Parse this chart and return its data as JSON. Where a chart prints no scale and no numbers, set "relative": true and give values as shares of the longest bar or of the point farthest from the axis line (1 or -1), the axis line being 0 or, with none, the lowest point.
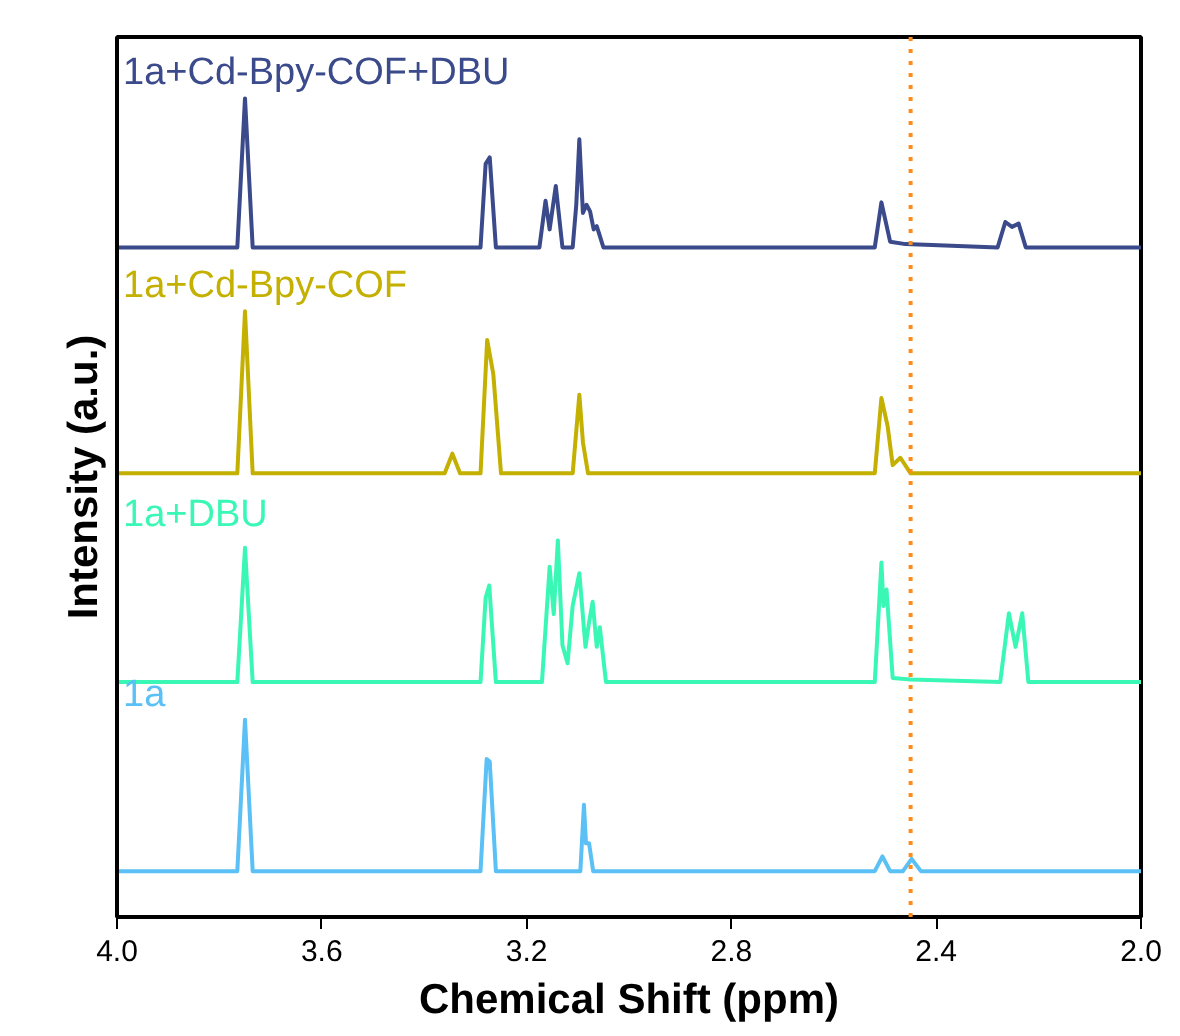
{
  "chart_data": {
    "type": "line",
    "relative": true,
    "xlabel": "Chemical Shift (ppm)",
    "ylabel": "Intensity (a.u.)",
    "xlim": [
      4.0,
      2.0
    ],
    "xticks": [
      {
        "value": 4.0,
        "label": "4.0"
      },
      {
        "value": 3.6,
        "label": "3.6"
      },
      {
        "value": 3.2,
        "label": "3.2"
      },
      {
        "value": 2.8,
        "label": "2.8"
      },
      {
        "value": 2.4,
        "label": "2.4"
      },
      {
        "value": 2.0,
        "label": "2.0"
      }
    ],
    "grid": false,
    "legend": false,
    "marker": "none",
    "line_style": "solid",
    "ref_lines": [
      {
        "axis": "x",
        "value": 2.45,
        "color": "#ff8c1a",
        "line_style": "dotted"
      }
    ],
    "series": [
      {
        "name": "1a",
        "color": "#5ac0f5",
        "x": [
          4.0,
          3.765,
          3.75,
          3.735,
          3.29,
          3.278,
          3.272,
          3.26,
          3.095,
          3.088,
          3.084,
          3.078,
          3.07,
          2.52,
          2.505,
          2.49,
          2.465,
          2.448,
          2.43,
          2.0
        ],
        "values": [
          0.056,
          0.056,
          0.241,
          0.056,
          0.056,
          0.193,
          0.19,
          0.056,
          0.056,
          0.137,
          0.09,
          0.09,
          0.056,
          0.056,
          0.074,
          0.056,
          0.056,
          0.071,
          0.056,
          0.056
        ]
      },
      {
        "name": "1a+DBU",
        "color": "#3af7b6",
        "x": [
          4.0,
          3.765,
          3.75,
          3.735,
          3.29,
          3.28,
          3.273,
          3.26,
          3.17,
          3.155,
          3.147,
          3.139,
          3.13,
          3.12,
          3.11,
          3.097,
          3.085,
          3.078,
          3.071,
          3.063,
          3.057,
          3.045,
          2.52,
          2.507,
          2.503,
          2.497,
          2.485,
          2.45,
          2.275,
          2.258,
          2.245,
          2.232,
          2.22,
          2.0
        ],
        "values": [
          0.287,
          0.287,
          0.451,
          0.287,
          0.287,
          0.39,
          0.405,
          0.287,
          0.287,
          0.428,
          0.37,
          0.46,
          0.332,
          0.31,
          0.38,
          0.42,
          0.33,
          0.36,
          0.385,
          0.33,
          0.354,
          0.287,
          0.287,
          0.433,
          0.38,
          0.4,
          0.292,
          0.29,
          0.287,
          0.371,
          0.33,
          0.371,
          0.287,
          0.287
        ]
      },
      {
        "name": "1a+Cd-Bpy-COF",
        "color": "#c4b000",
        "x": [
          4.0,
          3.765,
          3.75,
          3.735,
          3.36,
          3.345,
          3.33,
          3.29,
          3.277,
          3.265,
          3.25,
          3.11,
          3.097,
          3.09,
          3.08,
          2.52,
          2.507,
          2.495,
          2.485,
          2.47,
          2.45,
          2.0
        ],
        "values": [
          0.542,
          0.542,
          0.74,
          0.542,
          0.542,
          0.566,
          0.542,
          0.542,
          0.705,
          0.663,
          0.542,
          0.542,
          0.638,
          0.58,
          0.542,
          0.542,
          0.634,
          0.6,
          0.552,
          0.561,
          0.542,
          0.542
        ]
      },
      {
        "name": "1a+Cd-Bpy-COF+DBU",
        "color": "#3b4a8a",
        "x": [
          4.0,
          3.765,
          3.75,
          3.735,
          3.29,
          3.28,
          3.272,
          3.26,
          3.175,
          3.163,
          3.155,
          3.143,
          3.13,
          3.11,
          3.103,
          3.097,
          3.09,
          3.083,
          3.076,
          3.069,
          3.063,
          3.05,
          2.52,
          2.507,
          2.49,
          2.46,
          2.28,
          2.265,
          2.252,
          2.239,
          2.225,
          2.0
        ],
        "values": [
          0.818,
          0.818,
          1.0,
          0.818,
          0.818,
          0.92,
          0.928,
          0.818,
          0.818,
          0.875,
          0.84,
          0.893,
          0.818,
          0.818,
          0.87,
          0.95,
          0.86,
          0.87,
          0.862,
          0.84,
          0.844,
          0.818,
          0.818,
          0.873,
          0.825,
          0.822,
          0.818,
          0.849,
          0.843,
          0.847,
          0.818,
          0.818
        ]
      }
    ]
  }
}
